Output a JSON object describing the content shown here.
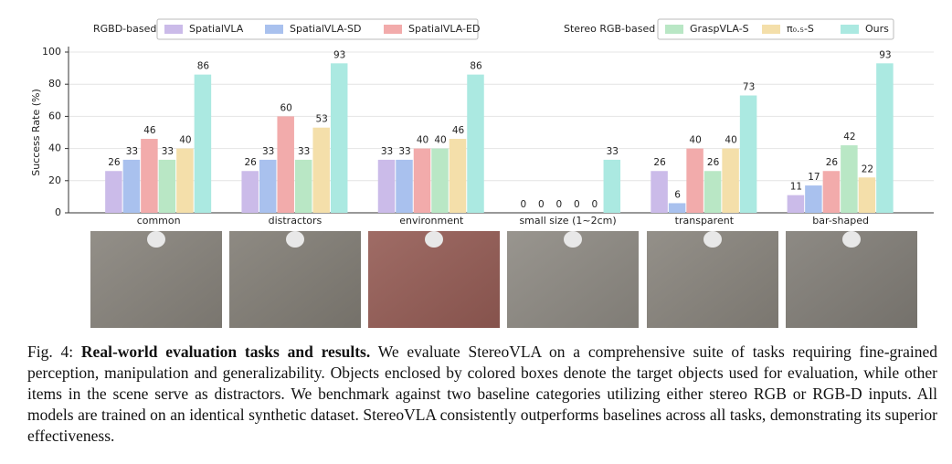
{
  "chart_data": {
    "type": "bar",
    "y_label": "Success Rate (%)",
    "categories": [
      "common",
      "distractors",
      "environment",
      "small size (1~2cm)",
      "transparent",
      "bar-shaped"
    ],
    "series": [
      {
        "name": "SpatialVLA",
        "group": "RGBD-based",
        "color": "#cbbbe9",
        "values": [
          26,
          26,
          33,
          0,
          26,
          11
        ]
      },
      {
        "name": "SpatialVLA-SD",
        "group": "RGBD-based",
        "color": "#a9c1ee",
        "values": [
          33,
          33,
          33,
          0,
          6,
          17
        ]
      },
      {
        "name": "SpatialVLA-ED",
        "group": "RGBD-based",
        "color": "#f2abab",
        "values": [
          46,
          60,
          40,
          0,
          40,
          26
        ]
      },
      {
        "name": "GraspVLA-S",
        "group": "Stereo RGB-based",
        "color": "#b9e7c5",
        "values": [
          33,
          33,
          40,
          0,
          26,
          42
        ]
      },
      {
        "name": "π₀.₅-S",
        "group": "Stereo RGB-based",
        "color": "#f4dfaa",
        "values": [
          40,
          53,
          46,
          0,
          40,
          22
        ]
      },
      {
        "name": "Ours",
        "group": "Stereo RGB-based",
        "color": "#abe9e1",
        "values": [
          86,
          93,
          86,
          33,
          73,
          93
        ]
      }
    ],
    "ylim": [
      0,
      100
    ],
    "yticks": [
      0,
      20,
      40,
      60,
      80,
      100
    ],
    "grid": true
  },
  "caption": {
    "label": "Fig. 4:",
    "title": "Real-world evaluation tasks and results.",
    "text": "We evaluate StereoVLA on a comprehensive suite of tasks requiring fine-grained perception, manipulation and generalizability. Objects enclosed by colored boxes denote the target objects used for evaluation, while other items in the scene serve as distractors. We benchmark against two baseline categories utilizing either stereo RGB or RGB-D inputs. All models are trained on an identical synthetic dataset. StereoVLA consistently outperforms baselines across all tasks, demonstrating its superior effectiveness."
  }
}
